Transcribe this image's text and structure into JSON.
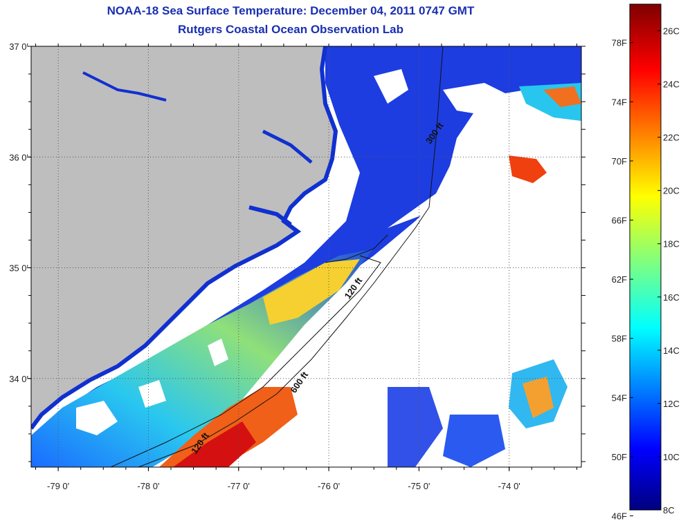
{
  "title_line1": "NOAA-18 Sea Surface Temperature:  December 04, 2011 0747 GMT",
  "title_line2": "Rutgers Coastal Ocean Observation Lab",
  "map": {
    "lat_ticks": [
      {
        "value": 37,
        "label": "37 0'"
      },
      {
        "value": 36,
        "label": "36 0'"
      },
      {
        "value": 35,
        "label": "35 0'"
      },
      {
        "value": 34,
        "label": "34 0'"
      }
    ],
    "lon_ticks": [
      {
        "value": -79,
        "label": "-79 0'"
      },
      {
        "value": -78,
        "label": "-78 0'"
      },
      {
        "value": -77,
        "label": "-77 0'"
      },
      {
        "value": -76,
        "label": "-76 0'"
      },
      {
        "value": -75,
        "label": "-75 0'"
      },
      {
        "value": -74,
        "label": "-74 0'"
      }
    ],
    "lon_range": [
      -79.3,
      -73.2
    ],
    "lat_range": [
      33.2,
      37.0
    ],
    "land_color": "#bebebe",
    "cloud_color": "#ffffff",
    "contour_labels": [
      {
        "text": "300 ft",
        "lon": -74.8,
        "lat": 36.2
      },
      {
        "text": "120 ft",
        "lon": -75.7,
        "lat": 34.8
      },
      {
        "text": "600 ft",
        "lon": -76.3,
        "lat": 33.95
      },
      {
        "text": "120 ft",
        "lon": -77.4,
        "lat": 33.4
      }
    ]
  },
  "colorbar": {
    "fahrenheit_labels": [
      "78F",
      "74F",
      "70F",
      "66F",
      "62F",
      "58F",
      "54F",
      "50F",
      "46F"
    ],
    "celsius_labels": [
      "26C",
      "24C",
      "22C",
      "20C",
      "18C",
      "16C",
      "14C",
      "12C",
      "10C",
      "8C"
    ],
    "min_c": 8,
    "max_c": 27
  }
}
